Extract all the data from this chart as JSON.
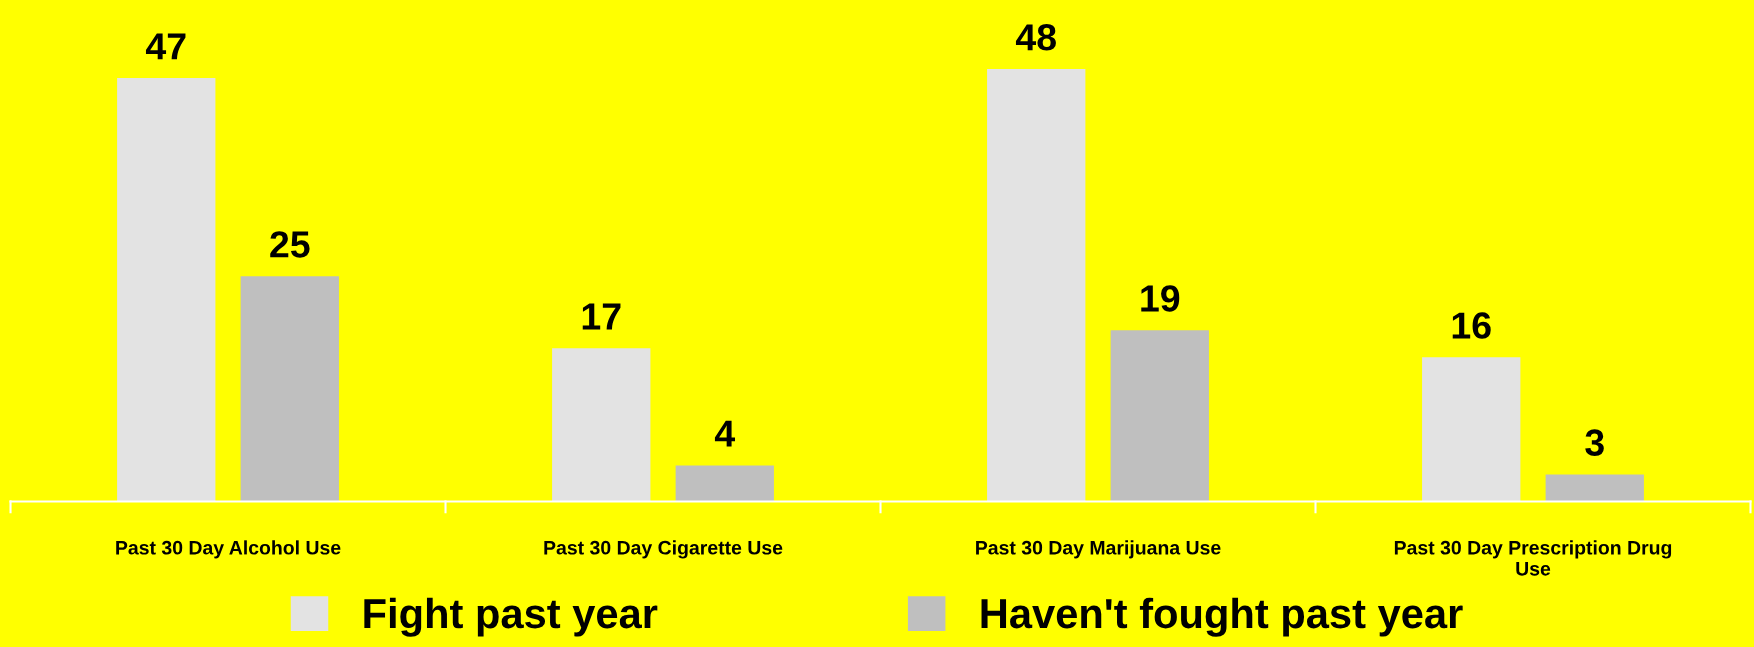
{
  "chart_data": {
    "type": "bar",
    "categories": [
      "Past 30 Day Alcohol Use",
      "Past 30 Day Cigarette Use",
      "Past 30 Day Marijuana Use",
      "Past 30 Day Prescription Drug\nUse"
    ],
    "series": [
      {
        "name": "Fight past year",
        "color": "#e3e3e3",
        "values": [
          47,
          17,
          48,
          16
        ]
      },
      {
        "name": "Haven't fought past year",
        "color": "#bfbfbf",
        "values": [
          25,
          4,
          19,
          3
        ]
      }
    ],
    "data_labels": true,
    "grid": false,
    "legend": "bottom"
  }
}
